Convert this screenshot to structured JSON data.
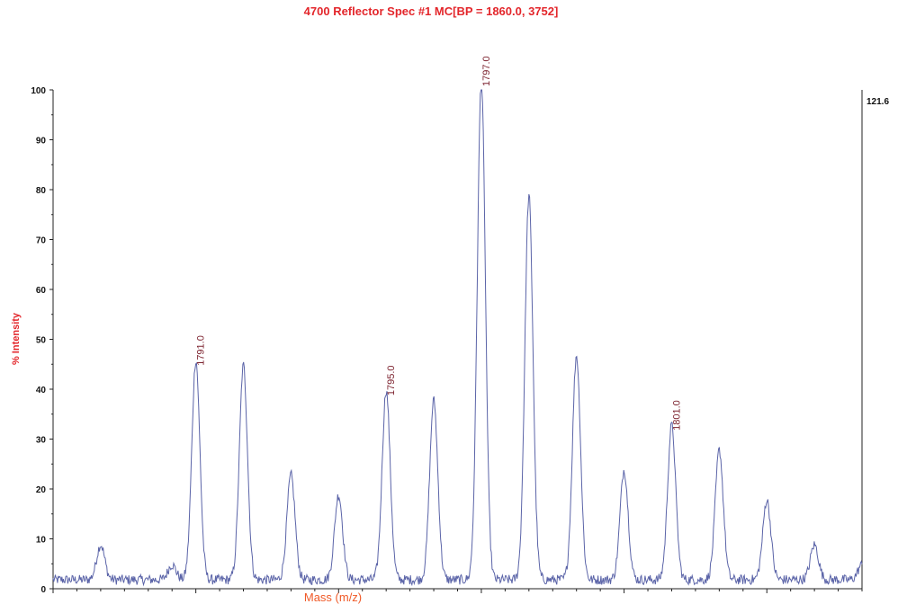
{
  "chart_data": {
    "type": "line",
    "title": "4700 Reflector Spec #1 MC[BP = 1860.0, 3752]",
    "xlabel": "Mass (m/z)",
    "ylabel": "% Intensity",
    "ylim": [
      0,
      100
    ],
    "yticks": [
      "0",
      "10",
      "20",
      "30",
      "40",
      "50",
      "60",
      "70",
      "80",
      "90",
      "100"
    ],
    "right_axis_max": "121.6",
    "line_color": "#5b64a8",
    "grid": false,
    "xlim": [
      1788.0,
      1805.0
    ],
    "peaks": [
      {
        "x": 1789.0,
        "y": 7
      },
      {
        "x": 1790.5,
        "y": 3
      },
      {
        "x": 1791.0,
        "y": 44,
        "label": "1791.0"
      },
      {
        "x": 1792.0,
        "y": 43
      },
      {
        "x": 1793.0,
        "y": 21
      },
      {
        "x": 1794.0,
        "y": 17
      },
      {
        "x": 1795.0,
        "y": 38,
        "label": "1795.0"
      },
      {
        "x": 1796.0,
        "y": 36
      },
      {
        "x": 1797.0,
        "y": 100,
        "label": "1797.0"
      },
      {
        "x": 1798.0,
        "y": 77
      },
      {
        "x": 1799.0,
        "y": 45
      },
      {
        "x": 1800.0,
        "y": 22
      },
      {
        "x": 1801.0,
        "y": 31,
        "label": "1801.0"
      },
      {
        "x": 1802.0,
        "y": 26
      },
      {
        "x": 1803.0,
        "y": 16
      },
      {
        "x": 1804.0,
        "y": 7
      },
      {
        "x": 1805.0,
        "y": 3
      }
    ]
  }
}
